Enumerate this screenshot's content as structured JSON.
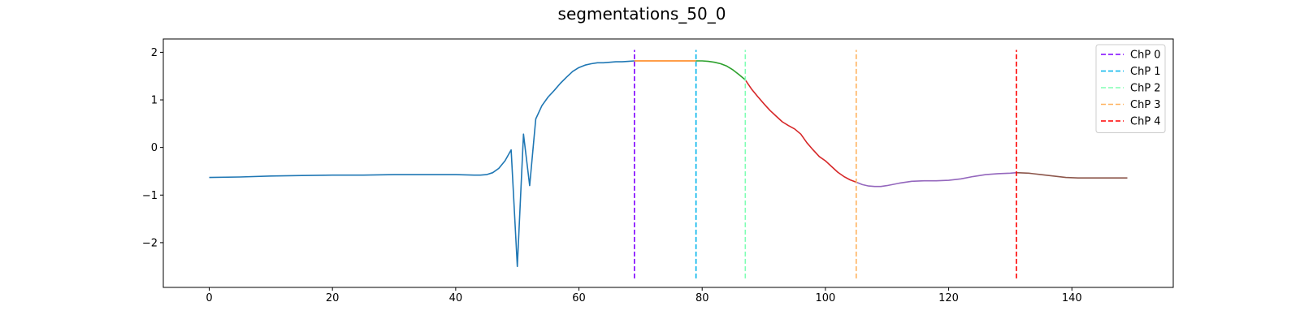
{
  "chart_data": {
    "type": "line",
    "title": "segmentations_50_0",
    "xlabel": "",
    "ylabel": "",
    "xlim": [
      -7.45,
      156.45
    ],
    "ylim": [
      -2.94,
      2.28
    ],
    "xticks": [
      0,
      20,
      40,
      60,
      80,
      100,
      120,
      140
    ],
    "yticks": [
      -2,
      -1,
      0,
      1,
      2
    ],
    "grid": false,
    "legend_position": "top-right",
    "series": [
      {
        "color": "#1f77b4",
        "x": [
          0,
          5,
          10,
          15,
          20,
          25,
          30,
          35,
          40,
          43,
          44,
          45,
          46,
          47,
          48,
          49,
          50,
          51,
          52,
          53,
          54,
          55,
          56,
          57,
          58,
          59,
          60,
          61,
          62,
          63,
          64,
          65,
          66,
          67,
          68,
          69
        ],
        "y": [
          -0.63,
          -0.62,
          -0.6,
          -0.59,
          -0.58,
          -0.58,
          -0.57,
          -0.57,
          -0.57,
          -0.58,
          -0.58,
          -0.57,
          -0.53,
          -0.44,
          -0.28,
          -0.05,
          -2.5,
          0.28,
          -0.8,
          0.6,
          0.88,
          1.06,
          1.2,
          1.35,
          1.48,
          1.6,
          1.68,
          1.73,
          1.76,
          1.78,
          1.78,
          1.79,
          1.8,
          1.8,
          1.81,
          1.82
        ]
      },
      {
        "color": "#ff7f0e",
        "x": [
          69,
          70,
          72,
          74,
          76,
          78,
          79
        ],
        "y": [
          1.82,
          1.82,
          1.82,
          1.82,
          1.82,
          1.82,
          1.82
        ]
      },
      {
        "color": "#2ca02c",
        "x": [
          79,
          80,
          81,
          82,
          83,
          84,
          85,
          86,
          87
        ],
        "y": [
          1.82,
          1.82,
          1.81,
          1.79,
          1.76,
          1.71,
          1.63,
          1.53,
          1.42
        ]
      },
      {
        "color": "#d62728",
        "x": [
          87,
          88,
          89,
          90,
          91,
          92,
          93,
          94,
          95,
          96,
          97,
          98,
          99,
          100,
          101,
          102,
          103,
          104,
          105
        ],
        "y": [
          1.42,
          1.23,
          1.07,
          0.92,
          0.78,
          0.66,
          0.54,
          0.46,
          0.39,
          0.28,
          0.1,
          -0.05,
          -0.19,
          -0.28,
          -0.4,
          -0.52,
          -0.61,
          -0.68,
          -0.73
        ]
      },
      {
        "color": "#9467bd",
        "x": [
          105,
          106,
          107,
          108,
          109,
          110,
          112,
          114,
          116,
          118,
          120,
          122,
          124,
          126,
          128,
          130,
          131
        ],
        "y": [
          -0.73,
          -0.78,
          -0.81,
          -0.82,
          -0.82,
          -0.8,
          -0.75,
          -0.71,
          -0.7,
          -0.7,
          -0.69,
          -0.66,
          -0.61,
          -0.57,
          -0.55,
          -0.54,
          -0.53
        ]
      },
      {
        "color": "#8c564b",
        "x": [
          131,
          133,
          135,
          137,
          139,
          141,
          143,
          145,
          147,
          149
        ],
        "y": [
          -0.53,
          -0.54,
          -0.57,
          -0.6,
          -0.63,
          -0.64,
          -0.64,
          -0.64,
          -0.64,
          -0.64
        ]
      }
    ],
    "changepoints": [
      {
        "name": "ChP 0",
        "x": 69,
        "color": "#7f00ff"
      },
      {
        "name": "ChP 1",
        "x": 79,
        "color": "#00b4eb"
      },
      {
        "name": "ChP 2",
        "x": 87,
        "color": "#80ffb4"
      },
      {
        "name": "ChP 3",
        "x": 105,
        "color": "#ffb360"
      },
      {
        "name": "ChP 4",
        "x": 131,
        "color": "#ff0000"
      }
    ],
    "changepoint_y_range": [
      -2.75,
      2.05
    ]
  }
}
